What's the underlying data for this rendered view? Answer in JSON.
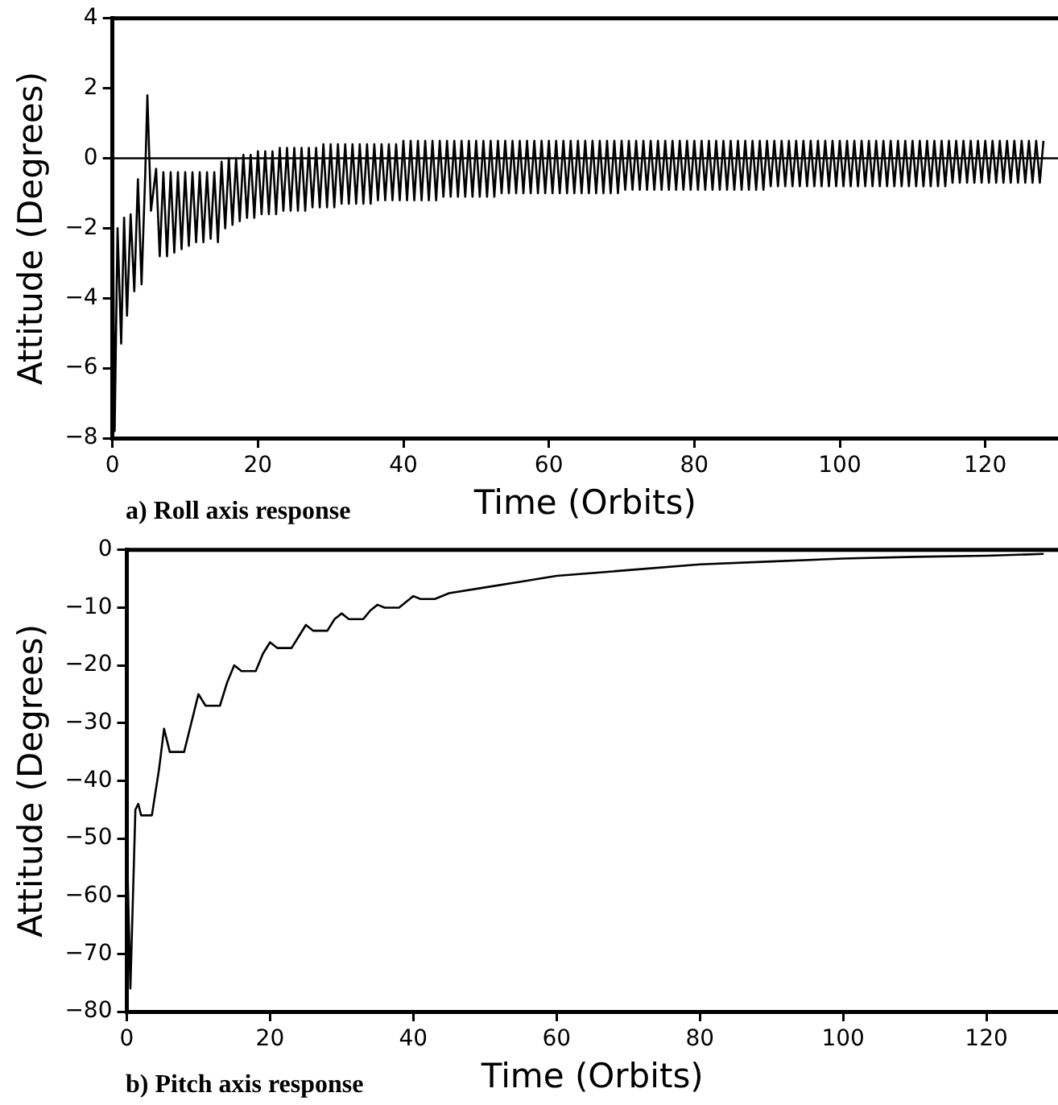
{
  "chart_data": [
    {
      "type": "line",
      "xlabel": "Time (Orbits)",
      "ylabel": "Attitude (Degrees)",
      "annotations": [
        "a) Roll axis response"
      ],
      "xlim": [
        0,
        130
      ],
      "xticks": [
        0,
        20,
        40,
        60,
        80,
        100,
        120
      ],
      "ylim": [
        -8,
        4
      ],
      "yticks": [
        -8,
        -6,
        -4,
        -2,
        0,
        2,
        4
      ],
      "grid": false,
      "legend": false,
      "ref_lines": [
        {
          "axis": "y",
          "value": 0,
          "color": "#000000"
        }
      ],
      "series": [
        {
          "color": "#000000",
          "x": [
            0,
            0.3,
            0.7,
            1.2,
            1.6,
            2,
            2.5,
            3,
            3.5,
            4,
            4.5,
            4.8,
            5.3,
            6,
            6.5,
            7,
            7.5,
            8,
            8.5,
            9,
            9.5,
            10,
            10.5,
            11,
            11.5,
            12,
            12.5,
            13,
            13.5,
            14,
            14.5,
            15,
            15.5,
            16,
            16.5,
            17,
            17.5,
            18,
            18.5,
            19,
            19.5,
            20,
            20.5,
            21,
            21.5,
            22,
            22.5,
            23,
            23.5,
            24,
            24.5,
            25,
            25.5,
            26,
            26.5,
            27,
            27.5,
            28,
            28.5,
            29,
            29.5,
            30,
            30.5,
            31,
            31.5,
            32,
            32.5,
            33,
            33.5,
            34,
            34.5,
            35,
            35.5,
            36,
            36.5,
            37,
            37.5,
            38,
            38.5,
            39,
            39.5,
            40,
            40.5,
            41,
            41.5,
            42,
            42.5,
            43,
            43.5,
            44,
            44.5,
            45,
            45.5,
            46,
            46.5,
            47,
            47.5,
            48,
            48.5,
            49,
            49.5,
            50,
            50.5,
            51,
            51.5,
            52,
            52.5,
            53,
            53.5,
            54,
            54.5,
            55,
            55.5,
            56,
            56.5,
            57,
            57.5,
            58,
            58.5,
            59,
            59.5,
            60,
            60.5,
            61,
            61.5,
            62,
            62.5,
            63,
            63.5,
            64,
            64.5,
            65,
            65.5,
            66,
            66.5,
            67,
            67.5,
            68,
            68.5,
            69,
            69.5,
            70,
            70.5,
            71,
            71.5,
            72,
            72.5,
            73,
            73.5,
            74,
            74.5,
            75,
            75.5,
            76,
            76.5,
            77,
            77.5,
            78,
            78.5,
            79,
            79.5,
            80,
            80.5,
            81,
            81.5,
            82,
            82.5,
            83,
            83.5,
            84,
            84.5,
            85,
            85.5,
            86,
            86.5,
            87,
            87.5,
            88,
            88.5,
            89,
            89.5,
            90,
            90.5,
            91,
            91.5,
            92,
            92.5,
            93,
            93.5,
            94,
            94.5,
            95,
            95.5,
            96,
            96.5,
            97,
            97.5,
            98,
            98.5,
            99,
            99.5,
            100,
            100.5,
            101,
            101.5,
            102,
            102.5,
            103,
            103.5,
            104,
            104.5,
            105,
            105.5,
            106,
            106.5,
            107,
            107.5,
            108,
            108.5,
            109,
            109.5,
            110,
            110.5,
            111,
            111.5,
            112,
            112.5,
            113,
            113.5,
            114,
            114.5,
            115,
            115.5,
            116,
            116.5,
            117,
            117.5,
            118,
            118.5,
            119,
            119.5,
            120,
            120.5,
            121,
            121.5,
            122,
            122.5,
            123,
            123.5,
            124,
            124.5,
            125,
            125.5,
            126,
            126.5,
            127,
            127.5,
            128
          ],
          "values": [
            0,
            -7.8,
            -2,
            -5.3,
            -1.7,
            -4.5,
            -1.6,
            -3.8,
            -0.6,
            -3.6,
            -0.5,
            1.8,
            -1.5,
            -0.3,
            -2.8,
            -0.4,
            -2.8,
            -0.4,
            -2.7,
            -0.4,
            -2.6,
            -0.4,
            -2.5,
            -0.4,
            -2.4,
            -0.4,
            -2.4,
            -0.4,
            -2.3,
            -0.4,
            -2.4,
            -0.1,
            -2,
            0,
            -1.9,
            0,
            -1.8,
            0.1,
            -1.7,
            0.1,
            -1.7,
            0.2,
            -1.6,
            0.2,
            -1.6,
            0.2,
            -1.6,
            0.3,
            -1.5,
            0.3,
            -1.5,
            0.3,
            -1.5,
            0.3,
            -1.5,
            0.3,
            -1.4,
            0.3,
            -1.4,
            0.4,
            -1.4,
            0.4,
            -1.4,
            0.4,
            -1.3,
            0.4,
            -1.3,
            0.4,
            -1.3,
            0.4,
            -1.3,
            0.4,
            -1.3,
            0.4,
            -1.2,
            0.4,
            -1.2,
            0.4,
            -1.2,
            0.4,
            -1.2,
            0.5,
            -1.2,
            0.5,
            -1.2,
            0.5,
            -1.2,
            0.5,
            -1.2,
            0.5,
            -1.2,
            0.5,
            -1.1,
            0.5,
            -1.1,
            0.5,
            -1.1,
            0.5,
            -1.1,
            0.5,
            -1.1,
            0.5,
            -1.1,
            0.5,
            -1.1,
            0.5,
            -1.1,
            0.5,
            -1,
            0.5,
            -1,
            0.5,
            -1,
            0.5,
            -1,
            0.5,
            -1,
            0.5,
            -1,
            0.5,
            -1,
            0.5,
            -1,
            0.5,
            -1,
            0.5,
            -1,
            0.5,
            -1,
            0.5,
            -1,
            0.5,
            -1,
            0.5,
            -1,
            0.5,
            -1,
            0.5,
            -1,
            0.5,
            -1,
            0.5,
            -0.9,
            0.5,
            -0.9,
            0.5,
            -0.9,
            0.5,
            -0.9,
            0.5,
            -0.9,
            0.5,
            -0.9,
            0.5,
            -0.9,
            0.5,
            -0.9,
            0.5,
            -0.9,
            0.5,
            -0.9,
            0.5,
            -0.9,
            0.5,
            -0.9,
            0.5,
            -0.9,
            0.5,
            -0.9,
            0.5,
            -0.9,
            0.5,
            -0.9,
            0.5,
            -0.9,
            0.5,
            -0.9,
            0.5,
            -0.9,
            0.5,
            -0.9,
            0.5,
            -0.8,
            0.5,
            -0.8,
            0.5,
            -0.8,
            0.5,
            -0.8,
            0.5,
            -0.8,
            0.5,
            -0.8,
            0.5,
            -0.8,
            0.5,
            -0.8,
            0.5,
            -0.8,
            0.5,
            -0.8,
            0.5,
            -0.8,
            0.5,
            -0.8,
            0.5,
            -0.8,
            0.5,
            -0.8,
            0.5,
            -0.8,
            0.5,
            -0.8,
            0.5,
            -0.8,
            0.5,
            -0.8,
            0.5,
            -0.8,
            0.5,
            -0.8,
            0.5,
            -0.8,
            0.5,
            -0.8,
            0.5,
            -0.8,
            0.5,
            -0.8,
            0.5,
            -0.8,
            0.5,
            -0.7,
            0.5,
            -0.7,
            0.5,
            -0.7,
            0.5,
            -0.7,
            0.5,
            -0.7,
            0.5,
            -0.7,
            0.5,
            -0.7,
            0.5,
            -0.7,
            0.5,
            -0.7,
            0.5,
            -0.7,
            0.5,
            -0.7,
            0.5,
            -0.7,
            0.5,
            -0.7,
            0.5
          ]
        }
      ]
    },
    {
      "type": "line",
      "xlabel": "Time (Orbits)",
      "ylabel": "Attitude (Degrees)",
      "annotations": [
        "b) Pitch axis response"
      ],
      "xlim": [
        0,
        130
      ],
      "xticks": [
        0,
        20,
        40,
        60,
        80,
        100,
        120
      ],
      "ylim": [
        -80,
        0
      ],
      "yticks": [
        -80,
        -70,
        -60,
        -50,
        -40,
        -30,
        -20,
        -10,
        0
      ],
      "grid": false,
      "legend": false,
      "series": [
        {
          "color": "#000000",
          "x": [
            0,
            0.5,
            1.2,
            1.6,
            2,
            3.5,
            4.5,
            5.2,
            6,
            8,
            9,
            10,
            11,
            13,
            14,
            15,
            16,
            18,
            19,
            20,
            21,
            23,
            24,
            25,
            26,
            28,
            29,
            30,
            31,
            33,
            34,
            35,
            36,
            38,
            39,
            40,
            41,
            43,
            45,
            50,
            55,
            60,
            65,
            70,
            80,
            90,
            100,
            110,
            120,
            128
          ],
          "values": [
            -50,
            -76,
            -45,
            -44,
            -46,
            -46,
            -38,
            -31,
            -35,
            -35,
            -30,
            -25,
            -27,
            -27,
            -23,
            -20,
            -21,
            -21,
            -18,
            -16,
            -17,
            -17,
            -15,
            -13,
            -14,
            -14,
            -12,
            -11,
            -12,
            -12,
            -10.5,
            -9.5,
            -10,
            -10,
            -9,
            -8,
            -8.5,
            -8.5,
            -7.5,
            -6.5,
            -5.5,
            -4.5,
            -4,
            -3.5,
            -2.5,
            -2,
            -1.5,
            -1.2,
            -1,
            -0.7
          ]
        }
      ]
    }
  ]
}
